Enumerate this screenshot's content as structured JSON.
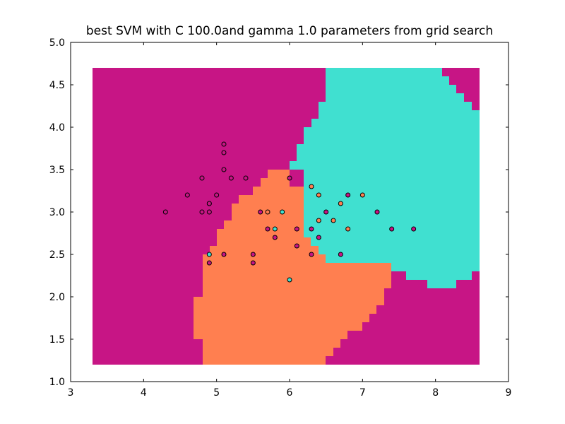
{
  "chart_data": {
    "type": "scatter",
    "title": "best SVM with C 100.0and gamma 1.0 parameters from grid search",
    "xlabel": "",
    "ylabel": "",
    "xlim": [
      3,
      9
    ],
    "ylim": [
      1.0,
      5.0
    ],
    "x_ticks": [
      "3",
      "4",
      "5",
      "6",
      "7",
      "8",
      "9"
    ],
    "y_ticks": [
      "1.0",
      "1.5",
      "2.0",
      "2.5",
      "3.0",
      "3.5",
      "4.0",
      "4.5",
      "5.0"
    ],
    "grid": false,
    "legend": "none",
    "colors": {
      "class_0": "#c71585",
      "class_1": "#40e0d0",
      "class_2": "#ff7f50"
    },
    "decision_regions": {
      "x_extent": [
        3.3,
        8.6
      ],
      "y_extent": [
        1.2,
        4.7
      ],
      "class_0": "magenta background covering the left side and bottom-right corner",
      "class_1": "turquoise region in the upper-right (roughly x 6.0 to 8.6, y 2.1 to 4.7)",
      "class_2": "coral region in the center-bottom (roughly x 4.7 to 6.6, y 1.2 to 3.6)"
    },
    "series": [
      {
        "class": "class_0",
        "points": [
          [
            5.1,
            3.8
          ],
          [
            5.1,
            3.7
          ],
          [
            5.1,
            3.5
          ],
          [
            4.8,
            3.4
          ],
          [
            5.2,
            3.4
          ],
          [
            5.4,
            3.4
          ],
          [
            4.6,
            3.2
          ],
          [
            5.0,
            3.2
          ],
          [
            4.9,
            3.1
          ],
          [
            4.9,
            3.1
          ],
          [
            4.3,
            3.0
          ],
          [
            4.8,
            3.0
          ],
          [
            4.9,
            3.0
          ],
          [
            5.6,
            3.0
          ],
          [
            6.0,
            3.4
          ],
          [
            5.7,
            2.8
          ],
          [
            5.8,
            2.7
          ],
          [
            4.9,
            2.4
          ],
          [
            5.1,
            2.5
          ],
          [
            5.5,
            2.5
          ],
          [
            5.5,
            2.4
          ],
          [
            6.1,
            2.8
          ],
          [
            6.1,
            2.6
          ],
          [
            6.3,
            2.8
          ],
          [
            6.3,
            2.5
          ],
          [
            6.4,
            2.7
          ],
          [
            6.5,
            3.0
          ],
          [
            6.8,
            3.2
          ],
          [
            7.2,
            3.0
          ],
          [
            7.4,
            2.8
          ],
          [
            7.7,
            2.8
          ],
          [
            6.7,
            2.5
          ]
        ]
      },
      {
        "class": "class_1",
        "points": [
          [
            4.9,
            2.5
          ],
          [
            5.8,
            2.8
          ],
          [
            5.9,
            3.0
          ],
          [
            6.0,
            2.2
          ]
        ]
      },
      {
        "class": "class_2",
        "points": [
          [
            5.7,
            3.0
          ],
          [
            6.3,
            3.3
          ],
          [
            6.4,
            3.2
          ],
          [
            6.4,
            2.9
          ],
          [
            6.6,
            2.9
          ],
          [
            6.7,
            3.1
          ],
          [
            6.8,
            2.8
          ],
          [
            7.0,
            3.2
          ]
        ]
      }
    ]
  }
}
